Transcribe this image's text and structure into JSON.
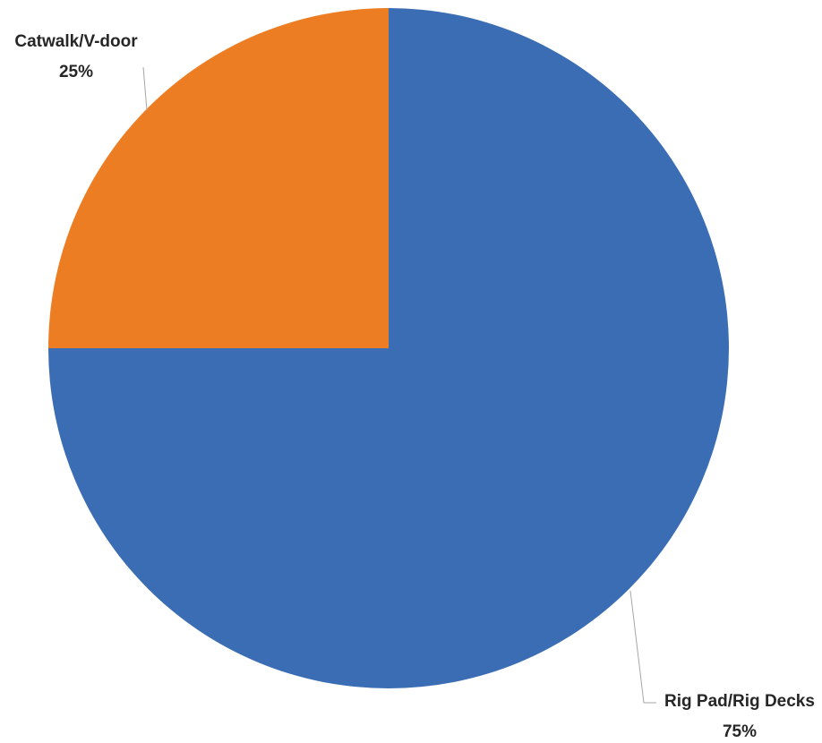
{
  "chart_data": {
    "type": "pie",
    "title": "",
    "start_angle_deg": 0,
    "direction": "clockwise",
    "slices": [
      {
        "label": "Rig Pad/Rig Decks",
        "value": 75,
        "value_label": "75%",
        "color": "#3B6DB4"
      },
      {
        "label": "Catwalk/V-door",
        "value": 25,
        "value_label": "25%",
        "color": "#ED7D23"
      }
    ],
    "data_labels": "outside with leader lines",
    "legend": "none"
  }
}
